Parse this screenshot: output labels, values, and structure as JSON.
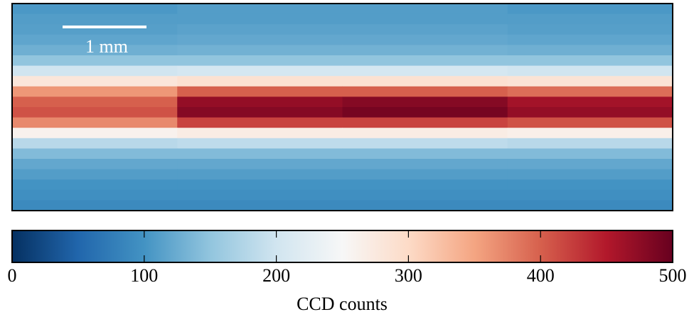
{
  "chart_data": {
    "type": "heatmap",
    "scale_bar_label": "1 mm",
    "colormap": [
      "#053061",
      "#2166ac",
      "#4393c3",
      "#92c5de",
      "#d1e5f0",
      "#f7f7f7",
      "#fddbc7",
      "#f4a582",
      "#d6604d",
      "#b2182b",
      "#67001f"
    ],
    "zlim": [
      0,
      500
    ],
    "colorbar": {
      "label": "CCD counts",
      "ticks": [
        0,
        100,
        200,
        300,
        400,
        500
      ]
    },
    "z": [
      [
        105,
        110,
        110,
        105
      ],
      [
        110,
        110,
        110,
        110
      ],
      [
        112,
        115,
        115,
        112
      ],
      [
        118,
        120,
        120,
        118
      ],
      [
        128,
        130,
        130,
        128
      ],
      [
        150,
        150,
        150,
        150
      ],
      [
        200,
        205,
        205,
        200
      ],
      [
        280,
        290,
        290,
        285
      ],
      [
        360,
        400,
        400,
        390
      ],
      [
        400,
        470,
        480,
        460
      ],
      [
        410,
        480,
        490,
        470
      ],
      [
        370,
        420,
        420,
        410
      ],
      [
        260,
        270,
        270,
        265
      ],
      [
        180,
        185,
        185,
        180
      ],
      [
        140,
        140,
        140,
        140
      ],
      [
        120,
        120,
        120,
        120
      ],
      [
        110,
        110,
        110,
        110
      ],
      [
        100,
        100,
        100,
        100
      ],
      [
        95,
        95,
        95,
        95
      ],
      [
        90,
        90,
        90,
        90
      ]
    ]
  }
}
